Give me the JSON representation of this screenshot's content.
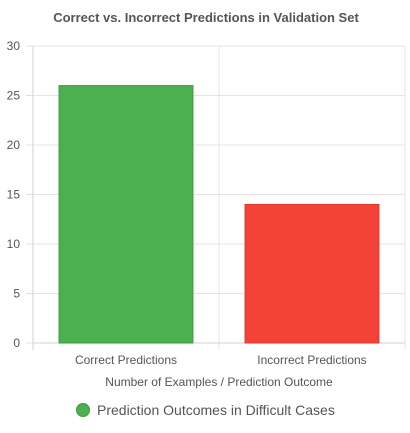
{
  "chart_data": {
    "type": "bar",
    "title": "Correct vs. Incorrect Predictions in Validation Set",
    "categories": [
      "Correct Predictions",
      "Incorrect Predictions"
    ],
    "series": [
      {
        "name": "Prediction Outcomes in Difficult Cases",
        "values": [
          26,
          14
        ],
        "colors": [
          "#4caf50",
          "#f44336"
        ],
        "border_colors": [
          "#3d9a40",
          "#d93a2f"
        ]
      }
    ],
    "xlabel": "Number of Examples / Prediction Outcome",
    "ylabel": "",
    "ylim": [
      0,
      30
    ],
    "yticks": [
      0,
      5,
      10,
      15,
      20,
      25,
      30
    ],
    "grid": true,
    "legend_position": "bottom",
    "legend_marker_color": "#4caf50",
    "legend_marker_border": "#3d9a40"
  }
}
